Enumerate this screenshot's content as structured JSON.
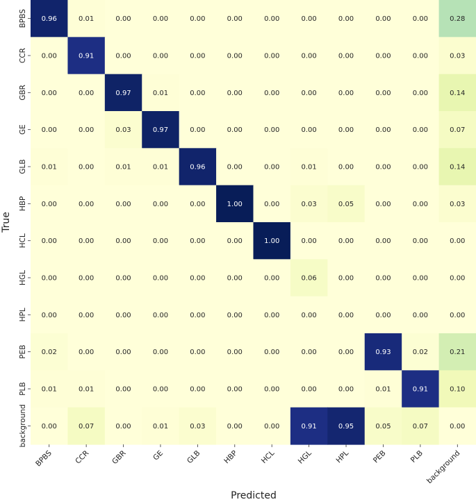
{
  "chart_data": {
    "type": "heatmap",
    "title": "",
    "xlabel": "Predicted",
    "ylabel": "True",
    "colormap": "YlGnBu",
    "value_range": [
      0,
      1
    ],
    "x_categories": [
      "BPBS",
      "CCR",
      "GBR",
      "GE",
      "GLB",
      "HBP",
      "HCL",
      "HGL",
      "HPL",
      "PEB",
      "PLB",
      "background"
    ],
    "y_categories": [
      "BPBS",
      "CCR",
      "GBR",
      "GE",
      "GLB",
      "HBP",
      "HCL",
      "HGL",
      "HPL",
      "PEB",
      "PLB",
      "background"
    ],
    "values": [
      [
        0.96,
        0.01,
        0.0,
        0.0,
        0.0,
        0.0,
        0.0,
        0.0,
        0.0,
        0.0,
        0.0,
        0.28
      ],
      [
        0.0,
        0.91,
        0.0,
        0.0,
        0.0,
        0.0,
        0.0,
        0.0,
        0.0,
        0.0,
        0.0,
        0.03
      ],
      [
        0.0,
        0.0,
        0.97,
        0.01,
        0.0,
        0.0,
        0.0,
        0.0,
        0.0,
        0.0,
        0.0,
        0.14
      ],
      [
        0.0,
        0.0,
        0.03,
        0.97,
        0.0,
        0.0,
        0.0,
        0.0,
        0.0,
        0.0,
        0.0,
        0.07
      ],
      [
        0.01,
        0.0,
        0.01,
        0.01,
        0.96,
        0.0,
        0.0,
        0.01,
        0.0,
        0.0,
        0.0,
        0.14
      ],
      [
        0.0,
        0.0,
        0.0,
        0.0,
        0.0,
        1.0,
        0.0,
        0.03,
        0.05,
        0.0,
        0.0,
        0.03
      ],
      [
        0.0,
        0.0,
        0.0,
        0.0,
        0.0,
        0.0,
        1.0,
        0.0,
        0.0,
        0.0,
        0.0,
        0.0
      ],
      [
        0.0,
        0.0,
        0.0,
        0.0,
        0.0,
        0.0,
        0.0,
        0.06,
        0.0,
        0.0,
        0.0,
        0.0
      ],
      [
        0.0,
        0.0,
        0.0,
        0.0,
        0.0,
        0.0,
        0.0,
        0.0,
        0.0,
        0.0,
        0.0,
        0.0
      ],
      [
        0.02,
        0.0,
        0.0,
        0.0,
        0.0,
        0.0,
        0.0,
        0.0,
        0.0,
        0.93,
        0.02,
        0.21
      ],
      [
        0.01,
        0.01,
        0.0,
        0.0,
        0.0,
        0.0,
        0.0,
        0.0,
        0.0,
        0.01,
        0.91,
        0.1
      ],
      [
        0.0,
        0.07,
        0.0,
        0.01,
        0.03,
        0.0,
        0.0,
        0.91,
        0.95,
        0.05,
        0.07,
        0.0
      ]
    ],
    "value_format": "2 decimals",
    "legend": "none",
    "grid": false
  }
}
